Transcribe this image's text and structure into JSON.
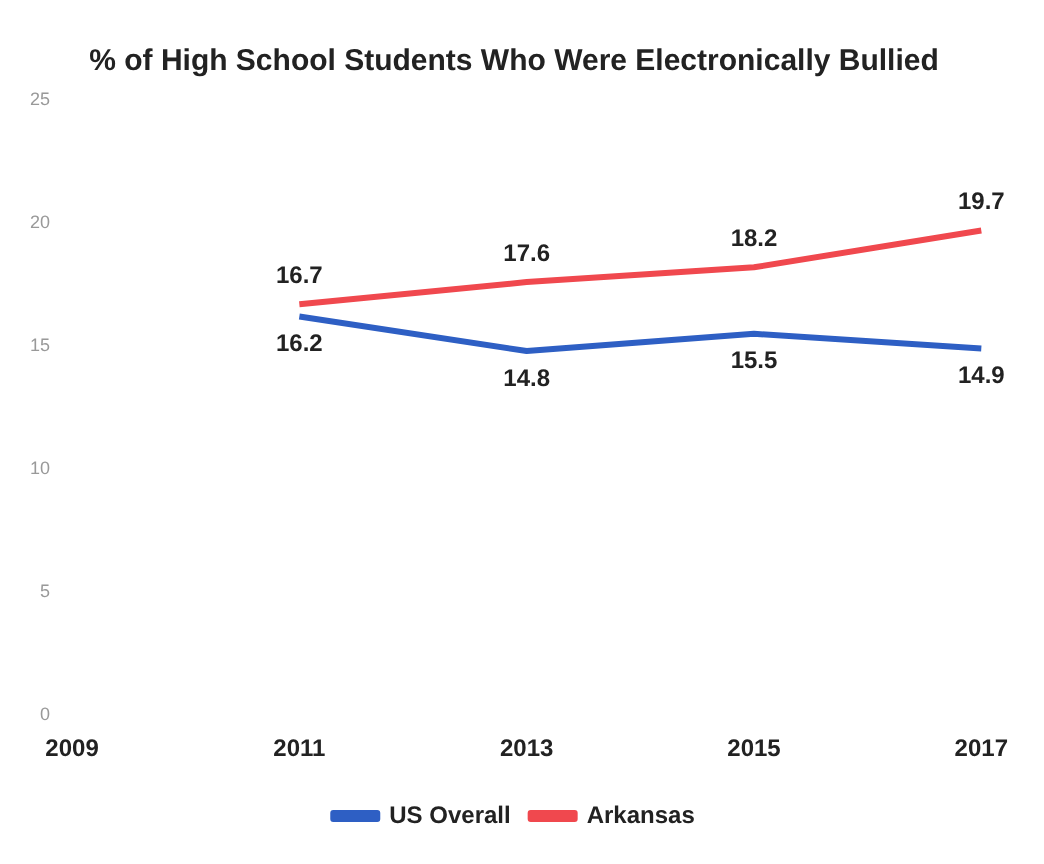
{
  "chart_data": {
    "type": "line",
    "title": "% of High School Students Who Were Electronically Bullied",
    "categories": [
      "2009",
      "2011",
      "2013",
      "2015",
      "2017"
    ],
    "series": [
      {
        "name": "US Overall",
        "color": "#2e5fc4",
        "values": [
          null,
          16.2,
          14.8,
          15.5,
          14.9
        ]
      },
      {
        "name": "Arkansas",
        "color": "#f0484e",
        "values": [
          null,
          16.7,
          17.6,
          18.2,
          19.7
        ]
      }
    ],
    "ylim": [
      0,
      25
    ],
    "yticks": [
      0,
      5,
      10,
      15,
      20,
      25
    ],
    "data_labels": true,
    "legend": "bottom",
    "grid": false,
    "marker": "none"
  }
}
